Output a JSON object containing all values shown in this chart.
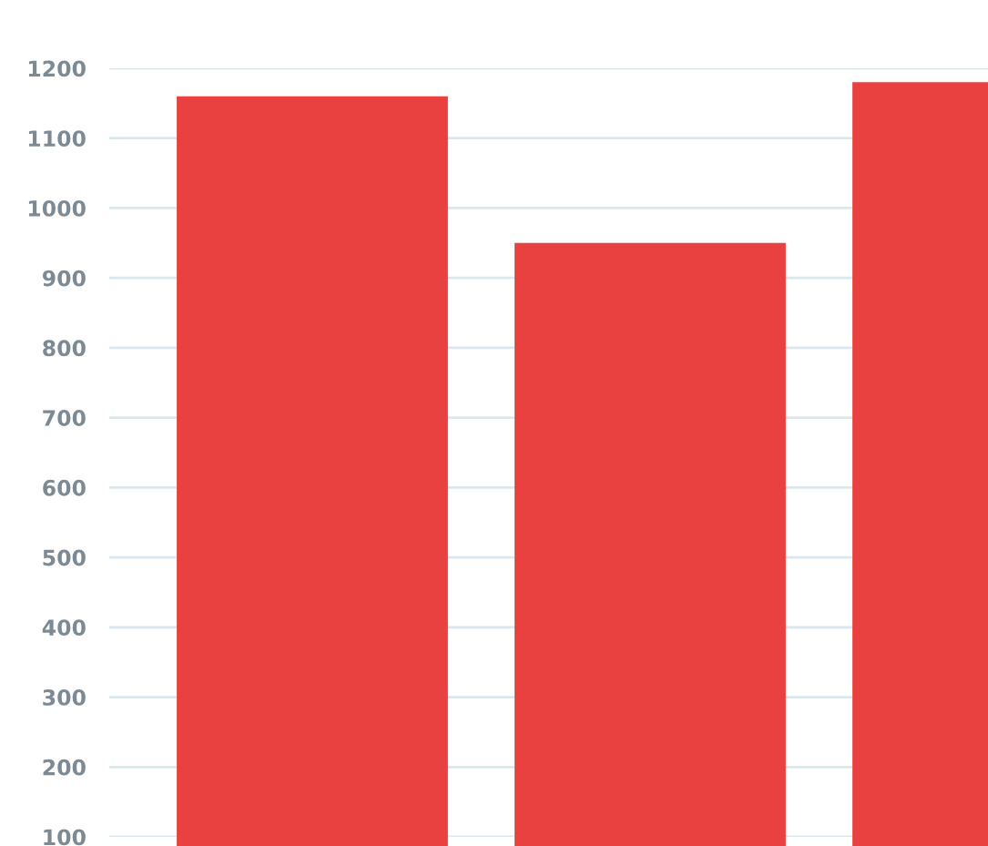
{
  "chart_data": {
    "type": "bar",
    "categories": [
      null,
      null,
      null
    ],
    "values": [
      1160,
      950,
      1180
    ],
    "color": "#e94040",
    "ylim": [
      100,
      1200
    ],
    "yticks": [
      100,
      200,
      300,
      400,
      500,
      600,
      700,
      800,
      900,
      1000,
      1100,
      1200
    ],
    "grid": "y"
  }
}
